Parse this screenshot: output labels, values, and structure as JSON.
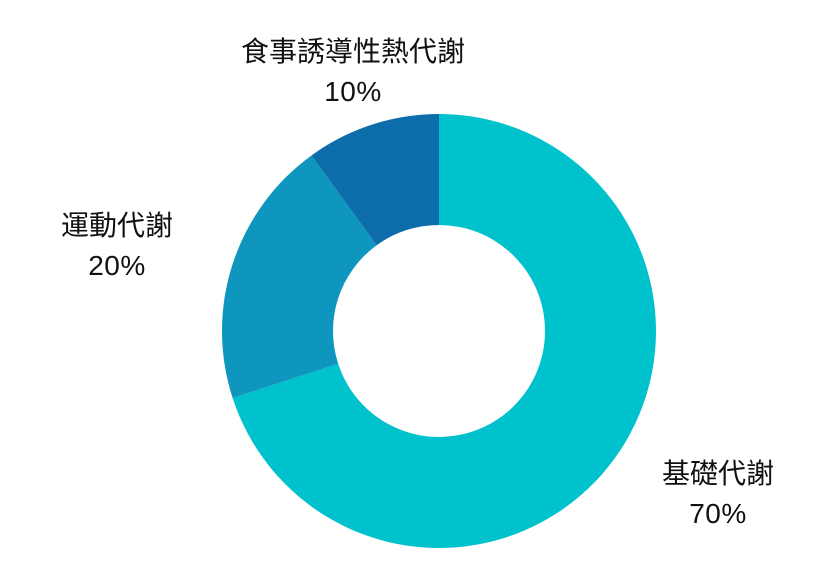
{
  "chart_data": {
    "type": "pie",
    "subtype": "donut",
    "direction": "clockwise",
    "start_angle_deg": 0,
    "inner_radius_ratio": 0.49,
    "background": "#FFFFFF",
    "text_color": "#111111",
    "grid": false,
    "legend": false,
    "labels_position": "outside",
    "slices": [
      {
        "id": "basal-metabolism",
        "label": "基礎代謝",
        "value": 70,
        "value_label": "70%",
        "color": "#00C2CC"
      },
      {
        "id": "exercise-metabolism",
        "label": "運動代謝",
        "value": 20,
        "value_label": "20%",
        "color": "#0E96BE"
      },
      {
        "id": "diet-induced-thermogenesis",
        "label": "食事誘導性熱代謝",
        "value": 10,
        "value_label": "10%",
        "color": "#0D6CAA"
      }
    ]
  }
}
